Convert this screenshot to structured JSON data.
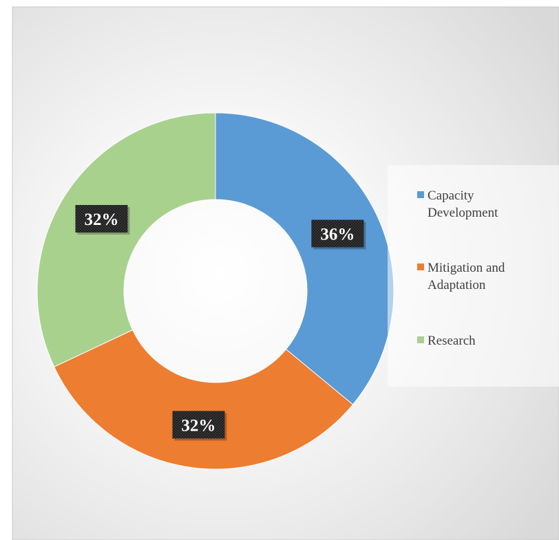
{
  "chart_data": {
    "type": "pie",
    "variant": "donut",
    "title": "",
    "categories": [
      "Capacity Development",
      "Mitigation and Adaptation",
      "Research"
    ],
    "values": [
      36,
      32,
      32
    ],
    "unit": "%",
    "data_labels": [
      "36%",
      "32%",
      "32%"
    ],
    "colors": [
      "#5b9bd5",
      "#ed7d31",
      "#a9d18e"
    ],
    "legend": {
      "position": "right",
      "entries": [
        "Capacity Development",
        "Mitigation and Adaptation",
        "Research"
      ]
    }
  }
}
